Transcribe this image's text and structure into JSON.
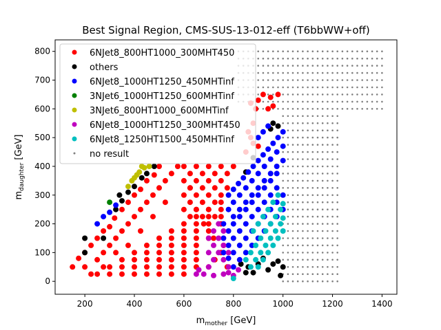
{
  "chart_data": {
    "type": "scatter",
    "title": "Best Signal Region, CMS-SUS-13-012-eff (T6bbWW+off)",
    "xlabel": {
      "main": "m",
      "sub": "mother",
      "unit": " [GeV]"
    },
    "ylabel": {
      "main": "m",
      "sub": "daughter",
      "unit": " [GeV]"
    },
    "xlim": [
      80,
      1460
    ],
    "ylim": [
      -45,
      840
    ],
    "xticks": [
      200,
      400,
      600,
      800,
      1000,
      1200,
      1400
    ],
    "yticks": [
      0,
      100,
      200,
      300,
      400,
      500,
      600,
      700,
      800
    ],
    "grid": false,
    "legend_position": "top-left",
    "series": [
      {
        "name": "6NJet8_800HT1000_300MHT450",
        "color": "#ff0000",
        "points": [
          [
            150,
            50
          ],
          [
            175,
            80
          ],
          [
            200,
            100
          ],
          [
            225,
            125
          ],
          [
            250,
            150
          ],
          [
            275,
            175
          ],
          [
            300,
            190
          ],
          [
            320,
            220
          ],
          [
            350,
            250
          ],
          [
            375,
            275
          ],
          [
            400,
            300
          ],
          [
            425,
            320
          ],
          [
            450,
            350
          ],
          [
            480,
            370
          ],
          [
            500,
            400
          ],
          [
            200,
            50
          ],
          [
            225,
            25
          ],
          [
            250,
            75
          ],
          [
            275,
            100
          ],
          [
            300,
            125
          ],
          [
            325,
            150
          ],
          [
            350,
            175
          ],
          [
            375,
            200
          ],
          [
            400,
            225
          ],
          [
            425,
            250
          ],
          [
            450,
            275
          ],
          [
            475,
            300
          ],
          [
            500,
            325
          ],
          [
            525,
            350
          ],
          [
            550,
            375
          ],
          [
            575,
            400
          ],
          [
            250,
            25
          ],
          [
            300,
            50
          ],
          [
            350,
            75
          ],
          [
            400,
            100
          ],
          [
            450,
            125
          ],
          [
            500,
            150
          ],
          [
            550,
            175
          ],
          [
            600,
            200
          ],
          [
            650,
            225
          ],
          [
            700,
            250
          ],
          [
            750,
            275
          ],
          [
            300,
            25
          ],
          [
            350,
            50
          ],
          [
            400,
            75
          ],
          [
            450,
            100
          ],
          [
            500,
            125
          ],
          [
            550,
            150
          ],
          [
            600,
            175
          ],
          [
            650,
            200
          ],
          [
            700,
            225
          ],
          [
            750,
            250
          ],
          [
            350,
            25
          ],
          [
            400,
            50
          ],
          [
            450,
            75
          ],
          [
            500,
            100
          ],
          [
            550,
            125
          ],
          [
            600,
            150
          ],
          [
            650,
            175
          ],
          [
            700,
            200
          ],
          [
            750,
            225
          ],
          [
            400,
            25
          ],
          [
            450,
            50
          ],
          [
            500,
            75
          ],
          [
            550,
            100
          ],
          [
            600,
            125
          ],
          [
            650,
            150
          ],
          [
            700,
            175
          ],
          [
            750,
            200
          ],
          [
            450,
            25
          ],
          [
            500,
            50
          ],
          [
            550,
            75
          ],
          [
            600,
            100
          ],
          [
            650,
            125
          ],
          [
            700,
            150
          ],
          [
            500,
            25
          ],
          [
            550,
            50
          ],
          [
            600,
            75
          ],
          [
            650,
            100
          ],
          [
            550,
            25
          ],
          [
            600,
            50
          ],
          [
            650,
            75
          ],
          [
            600,
            25
          ],
          [
            650,
            50
          ],
          [
            700,
            50
          ],
          [
            725,
            75
          ],
          [
            750,
            100
          ],
          [
            600,
            400
          ],
          [
            650,
            400
          ],
          [
            700,
            400
          ],
          [
            750,
            400
          ],
          [
            800,
            400
          ],
          [
            625,
            375
          ],
          [
            675,
            375
          ],
          [
            725,
            375
          ],
          [
            775,
            375
          ],
          [
            600,
            350
          ],
          [
            650,
            350
          ],
          [
            700,
            350
          ],
          [
            750,
            350
          ],
          [
            625,
            325
          ],
          [
            675,
            325
          ],
          [
            725,
            325
          ],
          [
            775,
            325
          ],
          [
            600,
            300
          ],
          [
            650,
            300
          ],
          [
            700,
            300
          ],
          [
            750,
            300
          ],
          [
            625,
            275
          ],
          [
            675,
            275
          ],
          [
            725,
            275
          ],
          [
            600,
            250
          ],
          [
            650,
            250
          ],
          [
            700,
            250
          ],
          [
            625,
            225
          ],
          [
            675,
            225
          ],
          [
            725,
            225
          ],
          [
            625,
            325
          ],
          [
            525,
            275
          ],
          [
            475,
            225
          ],
          [
            425,
            175
          ],
          [
            375,
            125
          ],
          [
            325,
            100
          ],
          [
            275,
            50
          ],
          [
            650,
            250
          ],
          [
            680,
            200
          ],
          [
            720,
            150
          ],
          [
            760,
            125
          ],
          [
            775,
            50
          ],
          [
            850,
            450
          ],
          [
            870,
            500
          ],
          [
            880,
            550
          ],
          [
            890,
            600
          ],
          [
            900,
            630
          ],
          [
            920,
            650
          ],
          [
            950,
            640
          ],
          [
            960,
            610
          ],
          [
            980,
            650
          ],
          [
            880,
            480
          ],
          [
            860,
            520
          ],
          [
            900,
            470
          ],
          [
            940,
            600
          ],
          [
            870,
            620
          ]
        ]
      },
      {
        "name": "others",
        "color": "#000000",
        "points": [
          [
            200,
            150
          ],
          [
            200,
            100
          ],
          [
            275,
            150
          ],
          [
            325,
            250
          ],
          [
            340,
            300
          ],
          [
            350,
            280
          ],
          [
            375,
            310
          ],
          [
            400,
            330
          ],
          [
            430,
            360
          ],
          [
            450,
            375
          ],
          [
            480,
            400
          ],
          [
            850,
            380
          ],
          [
            880,
            430
          ],
          [
            950,
            530
          ],
          [
            960,
            550
          ],
          [
            980,
            540
          ],
          [
            860,
            50
          ],
          [
            880,
            30
          ],
          [
            900,
            60
          ],
          [
            920,
            80
          ],
          [
            940,
            40
          ],
          [
            960,
            60
          ],
          [
            980,
            70
          ],
          [
            990,
            20
          ],
          [
            1000,
            50
          ],
          [
            830,
            60
          ],
          [
            850,
            30
          ]
        ]
      },
      {
        "name": "6NJet8_1000HT1250_450MHTinf",
        "color": "#0000ff",
        "points": [
          [
            250,
            200
          ],
          [
            275,
            225
          ],
          [
            300,
            240
          ],
          [
            325,
            265
          ],
          [
            780,
            300
          ],
          [
            800,
            320
          ],
          [
            820,
            340
          ],
          [
            840,
            360
          ],
          [
            860,
            380
          ],
          [
            880,
            400
          ],
          [
            900,
            420
          ],
          [
            920,
            440
          ],
          [
            940,
            460
          ],
          [
            960,
            480
          ],
          [
            980,
            500
          ],
          [
            1000,
            520
          ],
          [
            800,
            275
          ],
          [
            825,
            300
          ],
          [
            850,
            325
          ],
          [
            875,
            350
          ],
          [
            900,
            375
          ],
          [
            925,
            400
          ],
          [
            950,
            425
          ],
          [
            975,
            450
          ],
          [
            1000,
            470
          ],
          [
            780,
            250
          ],
          [
            800,
            225
          ],
          [
            825,
            250
          ],
          [
            850,
            275
          ],
          [
            875,
            300
          ],
          [
            900,
            325
          ],
          [
            925,
            350
          ],
          [
            950,
            375
          ],
          [
            975,
            400
          ],
          [
            1000,
            420
          ],
          [
            760,
            200
          ],
          [
            780,
            175
          ],
          [
            800,
            200
          ],
          [
            825,
            225
          ],
          [
            850,
            250
          ],
          [
            875,
            275
          ],
          [
            900,
            300
          ],
          [
            925,
            325
          ],
          [
            950,
            350
          ],
          [
            975,
            375
          ],
          [
            760,
            150
          ],
          [
            780,
            125
          ],
          [
            800,
            150
          ],
          [
            825,
            175
          ],
          [
            850,
            200
          ],
          [
            875,
            225
          ],
          [
            900,
            250
          ],
          [
            925,
            275
          ],
          [
            950,
            300
          ],
          [
            975,
            325
          ],
          [
            760,
            100
          ],
          [
            780,
            80
          ],
          [
            800,
            100
          ],
          [
            825,
            125
          ],
          [
            850,
            150
          ],
          [
            875,
            175
          ],
          [
            900,
            200
          ],
          [
            925,
            225
          ],
          [
            950,
            250
          ],
          [
            975,
            275
          ],
          [
            1000,
            300
          ],
          [
            800,
            50
          ],
          [
            825,
            75
          ],
          [
            850,
            100
          ],
          [
            875,
            125
          ],
          [
            900,
            150
          ],
          [
            925,
            175
          ],
          [
            950,
            200
          ],
          [
            975,
            225
          ],
          [
            1000,
            250
          ],
          [
            900,
            500
          ],
          [
            920,
            520
          ],
          [
            940,
            540
          ]
        ]
      },
      {
        "name": "3NJet6_1000HT1250_600MHTinf",
        "color": "#008000",
        "points": [
          [
            300,
            275
          ]
        ]
      },
      {
        "name": "3NJet6_800HT1000_600MHTinf",
        "color": "#bfbf00",
        "points": [
          [
            375,
            330
          ],
          [
            390,
            350
          ],
          [
            400,
            360
          ],
          [
            420,
            380
          ],
          [
            440,
            395
          ],
          [
            460,
            400
          ],
          [
            430,
            400
          ],
          [
            410,
            370
          ]
        ]
      },
      {
        "name": "6NJet8_1000HT1250_300MHT450",
        "color": "#bf00bf",
        "points": [
          [
            680,
            25
          ],
          [
            700,
            50
          ],
          [
            720,
            75
          ],
          [
            740,
            100
          ],
          [
            760,
            75
          ],
          [
            780,
            50
          ],
          [
            700,
            100
          ],
          [
            720,
            125
          ],
          [
            740,
            150
          ],
          [
            760,
            125
          ],
          [
            780,
            100
          ],
          [
            720,
            175
          ],
          [
            740,
            200
          ],
          [
            760,
            175
          ],
          [
            650,
            25
          ],
          [
            660,
            40
          ],
          [
            700,
            150
          ],
          [
            720,
            20
          ],
          [
            760,
            25
          ],
          [
            780,
            30
          ],
          [
            800,
            20
          ],
          [
            820,
            40
          ]
        ]
      },
      {
        "name": "6NJet8_1250HT1500_450MHTinf",
        "color": "#00bfbf",
        "points": [
          [
            800,
            10
          ],
          [
            850,
            75
          ],
          [
            870,
            100
          ],
          [
            890,
            125
          ],
          [
            910,
            150
          ],
          [
            930,
            175
          ],
          [
            950,
            200
          ],
          [
            970,
            225
          ],
          [
            990,
            250
          ],
          [
            1000,
            270
          ],
          [
            880,
            175
          ],
          [
            900,
            200
          ],
          [
            920,
            225
          ],
          [
            940,
            250
          ],
          [
            960,
            275
          ],
          [
            980,
            300
          ],
          [
            870,
            50
          ],
          [
            890,
            75
          ],
          [
            910,
            100
          ],
          [
            930,
            125
          ],
          [
            950,
            150
          ],
          [
            970,
            175
          ],
          [
            990,
            200
          ],
          [
            1000,
            220
          ],
          [
            900,
            50
          ],
          [
            920,
            75
          ],
          [
            940,
            100
          ],
          [
            960,
            125
          ],
          [
            980,
            150
          ],
          [
            1000,
            175
          ]
        ]
      }
    ],
    "no_result": {
      "name": "no result",
      "color": "#808080",
      "description_points": "grid"
    }
  }
}
